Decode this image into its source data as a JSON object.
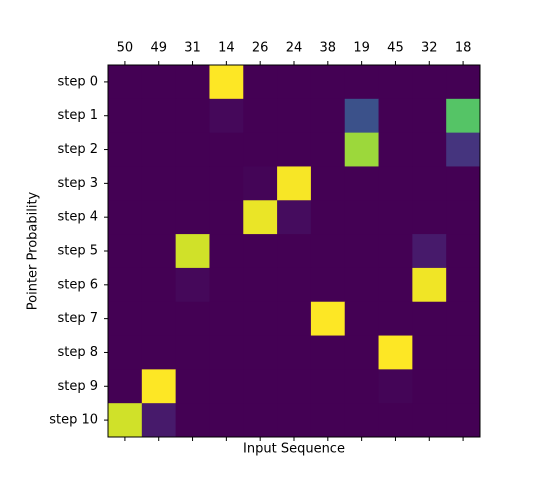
{
  "chart_data": {
    "type": "heatmap",
    "xlabel": "Input Sequence",
    "ylabel": "Pointer Probability",
    "categories": [
      "50",
      "49",
      "31",
      "14",
      "26",
      "24",
      "38",
      "19",
      "45",
      "32",
      "18"
    ],
    "y_categories": [
      "step 0",
      "step 1",
      "step 2",
      "step 3",
      "step 4",
      "step 5",
      "step 6",
      "step 7",
      "step 8",
      "step 9",
      "step 10"
    ],
    "colormap": "viridis",
    "values": [
      [
        0,
        0,
        0,
        1,
        0,
        0,
        0,
        0,
        0,
        0,
        0
      ],
      [
        0,
        0,
        0,
        0.02,
        0,
        0,
        0,
        0.25,
        0,
        0,
        0.73
      ],
      [
        0,
        0,
        0,
        0,
        0,
        0,
        0,
        0.85,
        0,
        0,
        0.15
      ],
      [
        0,
        0,
        0,
        0,
        0.01,
        0.99,
        0,
        0,
        0,
        0,
        0
      ],
      [
        0,
        0,
        0,
        0,
        0.97,
        0.03,
        0,
        0,
        0,
        0,
        0
      ],
      [
        0,
        0,
        0.93,
        0,
        0,
        0,
        0,
        0,
        0,
        0.07,
        0
      ],
      [
        0,
        0,
        0.02,
        0,
        0,
        0,
        0,
        0,
        0,
        0.98,
        0
      ],
      [
        0,
        0,
        0,
        0,
        0,
        0,
        1,
        0,
        0,
        0,
        0
      ],
      [
        0,
        0,
        0,
        0,
        0,
        0,
        0,
        0,
        1,
        0,
        0
      ],
      [
        0,
        1,
        0,
        0,
        0,
        0,
        0,
        0,
        0.01,
        0,
        0
      ],
      [
        0.93,
        0.07,
        0,
        0,
        0,
        0,
        0,
        0,
        0,
        0,
        0
      ]
    ]
  }
}
